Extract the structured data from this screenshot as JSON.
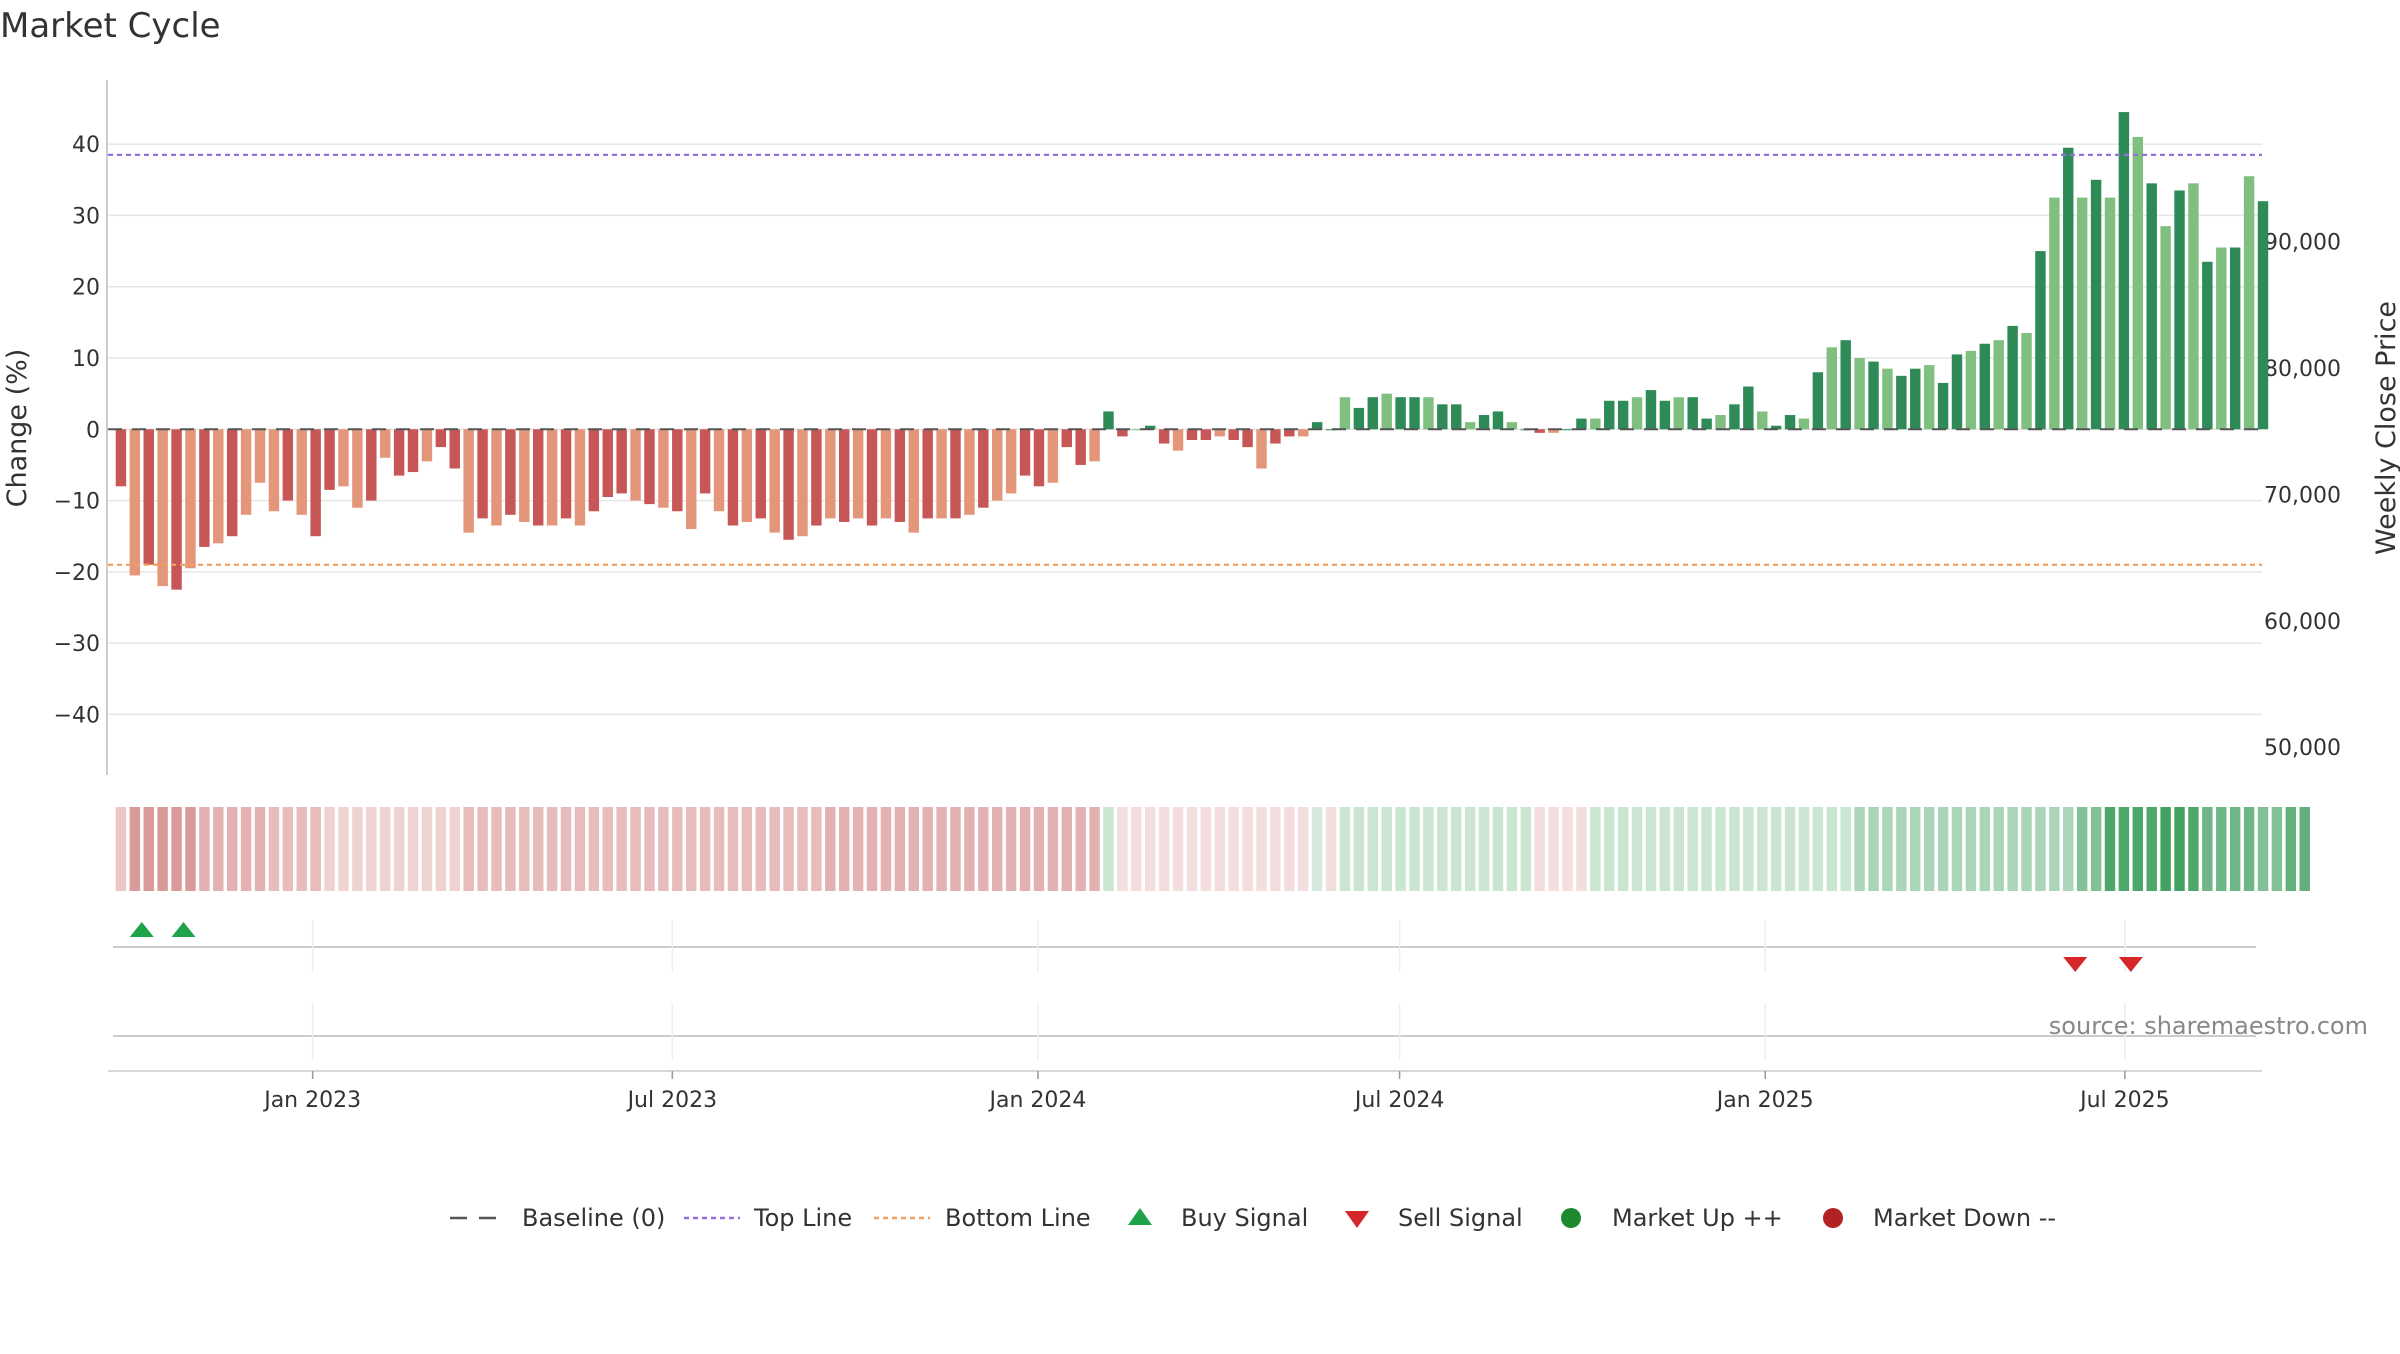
{
  "chart_data": {
    "type": "bar",
    "title": "Market Cycle",
    "ylabel": "Change (%)",
    "y2label": "Weekly Close Price",
    "ylim": [
      -48.5,
      49
    ],
    "yticks": [
      40,
      30,
      20,
      10,
      0,
      -10,
      -20,
      -30,
      -40
    ],
    "ytick_labels": [
      "40",
      "30",
      "20",
      "10",
      "0",
      "−10",
      "−20",
      "−30",
      "−40"
    ],
    "y2lim": [
      47800,
      102800
    ],
    "y2ticks": [
      90000,
      80000,
      70000,
      60000,
      50000
    ],
    "y2tick_labels": [
      "90,000",
      "80,000",
      "70,000",
      "60,000",
      "50,000"
    ],
    "x_ticks": [
      {
        "label": "Jan 2023",
        "date": "2023-01-01"
      },
      {
        "label": "Jul 2023",
        "date": "2023-07-01"
      },
      {
        "label": "Jan 2024",
        "date": "2024-01-01"
      },
      {
        "label": "Jul 2024",
        "date": "2024-07-01"
      },
      {
        "label": "Jan 2025",
        "date": "2025-01-01"
      },
      {
        "label": "Jul 2025",
        "date": "2025-07-01"
      }
    ],
    "x_range": [
      "2022-09-20",
      "2025-09-08"
    ],
    "first_week": "2022-09-23",
    "top_line": 38.5,
    "bottom_line": -19,
    "baseline": 0,
    "weekly_change": [
      -8,
      -20.5,
      -19,
      -22,
      -22.5,
      -19.5,
      -16.5,
      -16,
      -15,
      -12,
      -7.5,
      -11.5,
      -10,
      -12,
      -15,
      -8.5,
      -8,
      -11,
      -10,
      -4,
      -6.5,
      -6,
      -4.5,
      -2.5,
      -5.5,
      -14.5,
      -12.5,
      -13.5,
      -12,
      -13,
      -13.5,
      -13.5,
      -12.5,
      -13.5,
      -11.5,
      -9.5,
      -9,
      -10,
      -10.5,
      -11,
      -11.5,
      -14,
      -9,
      -11.5,
      -13.5,
      -13,
      -12.5,
      -14.5,
      -15.5,
      -15,
      -13.5,
      -12.5,
      -13,
      -12.5,
      -13.5,
      -12.5,
      -13,
      -14.5,
      -12.5,
      -12.5,
      -12.5,
      -12,
      -11,
      -10,
      -9,
      -6.5,
      -8,
      -7.5,
      -2.5,
      -5,
      -4.5,
      2.5,
      -1,
      0,
      0.5,
      -2,
      -3,
      -1.5,
      -1.5,
      -1,
      -1.5,
      -2.5,
      -5.5,
      -2,
      -1,
      -1,
      1,
      0,
      4.5,
      3,
      4.5,
      5,
      4.5,
      4.5,
      4.5,
      3.5,
      3.5,
      1,
      2,
      2.5,
      1,
      0,
      -0.5,
      -0.5,
      0,
      1.5,
      1.5,
      4,
      4,
      4.5,
      5.5,
      4,
      4.5,
      4.5,
      1.5,
      2,
      3.5,
      6,
      2.5,
      0.5,
      2,
      1.5,
      8,
      11.5,
      12.5,
      10,
      9.5,
      8.5,
      7.5,
      8.5,
      9,
      6.5,
      10.5,
      11,
      12,
      12.5,
      14.5,
      13.5,
      25,
      32.5,
      39.5,
      32.5,
      35,
      32.5,
      44.5,
      41,
      34.5,
      28.5,
      33.5,
      34.5,
      23.5,
      25.5,
      25.5,
      35.5,
      32
    ],
    "heat_values": [
      -0.25,
      -0.45,
      -0.45,
      -0.45,
      -0.45,
      -0.45,
      -0.35,
      -0.35,
      -0.35,
      -0.35,
      -0.35,
      -0.3,
      -0.3,
      -0.3,
      -0.3,
      -0.2,
      -0.2,
      -0.2,
      -0.2,
      -0.2,
      -0.2,
      -0.2,
      -0.2,
      -0.2,
      -0.2,
      -0.3,
      -0.3,
      -0.3,
      -0.3,
      -0.3,
      -0.3,
      -0.3,
      -0.3,
      -0.3,
      -0.3,
      -0.3,
      -0.3,
      -0.3,
      -0.3,
      -0.3,
      -0.3,
      -0.3,
      -0.3,
      -0.3,
      -0.3,
      -0.3,
      -0.3,
      -0.3,
      -0.3,
      -0.3,
      -0.3,
      -0.35,
      -0.35,
      -0.35,
      -0.35,
      -0.35,
      -0.35,
      -0.35,
      -0.35,
      -0.35,
      -0.35,
      -0.35,
      -0.35,
      -0.35,
      -0.35,
      -0.35,
      -0.35,
      -0.35,
      -0.35,
      -0.35,
      -0.35,
      0.25,
      -0.15,
      -0.15,
      -0.15,
      -0.15,
      -0.15,
      -0.15,
      -0.15,
      -0.15,
      -0.15,
      -0.15,
      -0.15,
      -0.15,
      -0.15,
      -0.15,
      0.2,
      -0.15,
      0.25,
      0.25,
      0.25,
      0.25,
      0.25,
      0.25,
      0.25,
      0.25,
      0.25,
      0.25,
      0.25,
      0.25,
      0.25,
      0.25,
      -0.15,
      -0.15,
      -0.15,
      -0.15,
      0.25,
      0.25,
      0.25,
      0.25,
      0.25,
      0.25,
      0.25,
      0.25,
      0.25,
      0.25,
      0.25,
      0.25,
      0.25,
      0.25,
      0.25,
      0.25,
      0.25,
      0.25,
      0.25,
      0.4,
      0.4,
      0.4,
      0.4,
      0.4,
      0.4,
      0.4,
      0.4,
      0.4,
      0.4,
      0.4,
      0.4,
      0.4,
      0.4,
      0.4,
      0.4,
      0.6,
      0.6,
      0.85,
      0.85,
      0.85,
      0.85,
      0.9,
      0.9,
      0.85,
      0.7,
      0.7,
      0.7,
      0.7,
      0.6,
      0.6,
      0.75,
      0.75
    ],
    "buy_signals": [
      "2022-10-07",
      "2022-10-28"
    ],
    "sell_signals": [
      "2025-06-06",
      "2025-07-04"
    ],
    "colors": {
      "strong_up": "#2e8b57",
      "weak_up": "#7fbf7f",
      "strong_down": "#c75656",
      "weak_down": "#e3967a",
      "top_line": "#9370db",
      "bottom_line": "#f0a060",
      "baseline": "#555555",
      "buy": "#1fa34a",
      "sell": "#d62728",
      "market_up": "#1e8a2e",
      "market_down": "#b22222"
    },
    "legend": [
      {
        "label": "Baseline (0)",
        "marker": "dash"
      },
      {
        "label": "Top Line",
        "marker": "dot-purple"
      },
      {
        "label": "Bottom Line",
        "marker": "dot-orange"
      },
      {
        "label": "Buy Signal",
        "marker": "triangle-up"
      },
      {
        "label": "Sell Signal",
        "marker": "triangle-down"
      },
      {
        "label": "Market Up ++",
        "marker": "circle-green"
      },
      {
        "label": "Market Down --",
        "marker": "circle-red"
      }
    ],
    "legend_position": "bottom-center",
    "source": "source: sharemaestro.com"
  }
}
